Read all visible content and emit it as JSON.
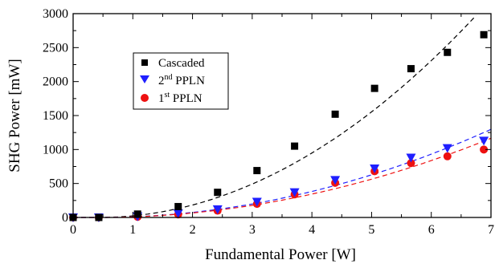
{
  "chart_data": {
    "type": "scatter",
    "title": "",
    "xlabel": "Fundamental Power [W]",
    "ylabel": "SHG Power [mW]",
    "xlim": [
      0,
      7
    ],
    "ylim": [
      0,
      3000
    ],
    "x_ticks": [
      "0",
      "1",
      "2",
      "3",
      "4",
      "5",
      "6",
      "7"
    ],
    "y_ticks": [
      "0",
      "500",
      "1000",
      "1500",
      "2000",
      "2500",
      "3000"
    ],
    "grid": false,
    "legend_position": "upper-left inset",
    "series": [
      {
        "name": "Cascaded",
        "marker": "square",
        "color": "#000000",
        "x": [
          0,
          0.43,
          1.08,
          1.76,
          2.42,
          3.08,
          3.71,
          4.39,
          5.05,
          5.66,
          6.27,
          6.88
        ],
        "y": [
          0,
          0,
          50,
          160,
          370,
          690,
          1050,
          1520,
          1900,
          2190,
          2430,
          2690
        ],
        "fit_color": "#000000"
      },
      {
        "name_main": "2",
        "name_sup": "nd",
        "name_rest": " PPLN",
        "marker": "triangle-down",
        "color": "#1f1fff",
        "x": [
          0,
          0.43,
          1.08,
          1.76,
          2.42,
          3.08,
          3.71,
          4.39,
          5.05,
          5.66,
          6.27,
          6.88
        ],
        "y": [
          0,
          0,
          15,
          60,
          120,
          230,
          370,
          550,
          720,
          880,
          1020,
          1130
        ],
        "fit_color": "#1f1fff"
      },
      {
        "name_main": "1",
        "name_sup": "st",
        "name_rest": "  PPLN",
        "marker": "circle",
        "color": "#ee1111",
        "x": [
          0,
          0.43,
          1.08,
          1.76,
          2.42,
          3.08,
          3.71,
          4.39,
          5.05,
          5.66,
          6.27,
          6.88
        ],
        "y": [
          0,
          0,
          10,
          45,
          100,
          200,
          340,
          510,
          680,
          800,
          900,
          1000
        ],
        "fit_color": "#ee1111"
      }
    ]
  }
}
